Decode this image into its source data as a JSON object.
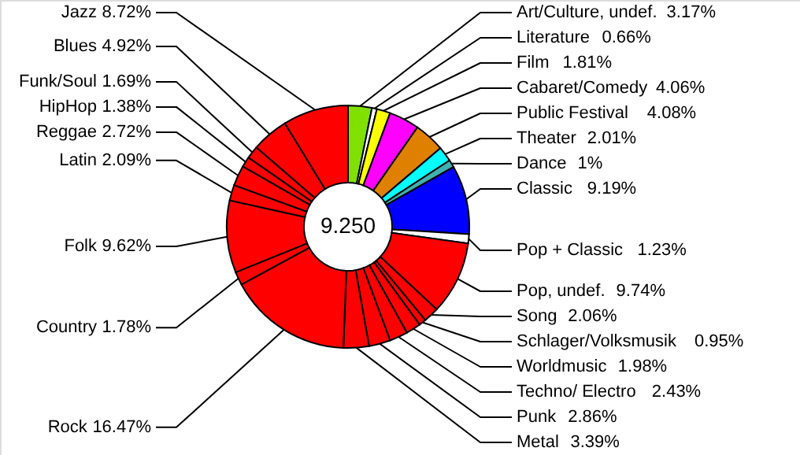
{
  "chart_data": {
    "type": "donut",
    "categories": [
      "Art/Culture, undef.",
      "Literature",
      "Film",
      "Cabaret/Comedy",
      "Public Festival",
      "Theater",
      "Dance",
      "Classic",
      "Pop + Classic",
      "Pop, undef.",
      "Song",
      "Schlager/Volksmusik",
      "Worldmusic",
      "Techno/ Electro",
      "Punk",
      "Metal",
      "Rock",
      "Country",
      "Folk",
      "Latin",
      "Reggae",
      "HipHop",
      "Funk/Soul",
      "Blues",
      "Jazz"
    ],
    "values": [
      3.17,
      0.66,
      1.81,
      4.06,
      4.08,
      2.01,
      1,
      9.19,
      1.23,
      9.74,
      2.06,
      0.95,
      1.98,
      2.43,
      2.86,
      3.39,
      16.47,
      1.78,
      9.62,
      2.09,
      2.72,
      1.38,
      1.69,
      4.92,
      8.72
    ],
    "colors": [
      "#80e000",
      "#ffffff",
      "#ffff00",
      "#ff00ff",
      "#e08000",
      "#00ffff",
      "#40b0b0",
      "#0000ff",
      "#ffffff",
      "#ff0000",
      "#ff0000",
      "#ff0000",
      "#ff0000",
      "#ff0000",
      "#ff0000",
      "#ff0000",
      "#ff0000",
      "#ff0000",
      "#ff0000",
      "#ff0000",
      "#ff0000",
      "#ff0000",
      "#ff0000",
      "#ff0000",
      "#ff0000"
    ],
    "value_labels": [
      "3.17%",
      "0.66%",
      "1.81%",
      "4.06%",
      "4.08%",
      "2.01%",
      "1%",
      "9.19%",
      "1.23%",
      "9.74%",
      "2.06%",
      "0.95%",
      "1.98%",
      "2.43%",
      "2.86%",
      "3.39%",
      "16.47%",
      "1.78%",
      "9.62%",
      "2.09%",
      "2.72%",
      "1.38%",
      "1.69%",
      "4.92%",
      "8.72%"
    ],
    "annotations": [
      "9.250"
    ]
  }
}
